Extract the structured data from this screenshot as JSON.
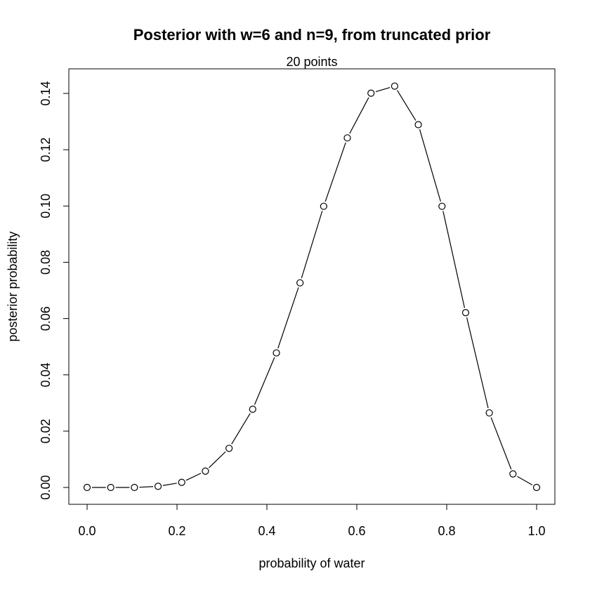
{
  "chart_data": {
    "type": "line",
    "title": "Posterior with w=6 and n=9, from truncated prior",
    "subtitle": "20 points",
    "xlabel": "probability of water",
    "ylabel": "posterior probability",
    "xlim": [
      0.0,
      1.0
    ],
    "ylim": [
      0.0,
      0.14
    ],
    "x_ticks": [
      "0.0",
      "0.2",
      "0.4",
      "0.6",
      "0.8",
      "1.0"
    ],
    "y_ticks": [
      "0.00",
      "0.02",
      "0.04",
      "0.06",
      "0.08",
      "0.10",
      "0.12",
      "0.14"
    ],
    "grid": false,
    "legend": "none",
    "marker": "open-circle",
    "line_color": "#000000",
    "series": [
      {
        "x": [
          0.0,
          0.0526,
          0.1053,
          0.1579,
          0.2105,
          0.2632,
          0.3158,
          0.3684,
          0.4211,
          0.4737,
          0.5263,
          0.5789,
          0.6316,
          0.6842,
          0.7368,
          0.7895,
          0.8421,
          0.8947,
          0.9474,
          1.0
        ],
        "y": [
          0.0,
          0.0,
          0.0,
          0.0004,
          0.0018,
          0.0058,
          0.0139,
          0.0278,
          0.0478,
          0.0727,
          0.0999,
          0.1242,
          0.1401,
          0.1426,
          0.1289,
          0.0999,
          0.0621,
          0.0265,
          0.0048,
          0.0
        ]
      }
    ]
  }
}
